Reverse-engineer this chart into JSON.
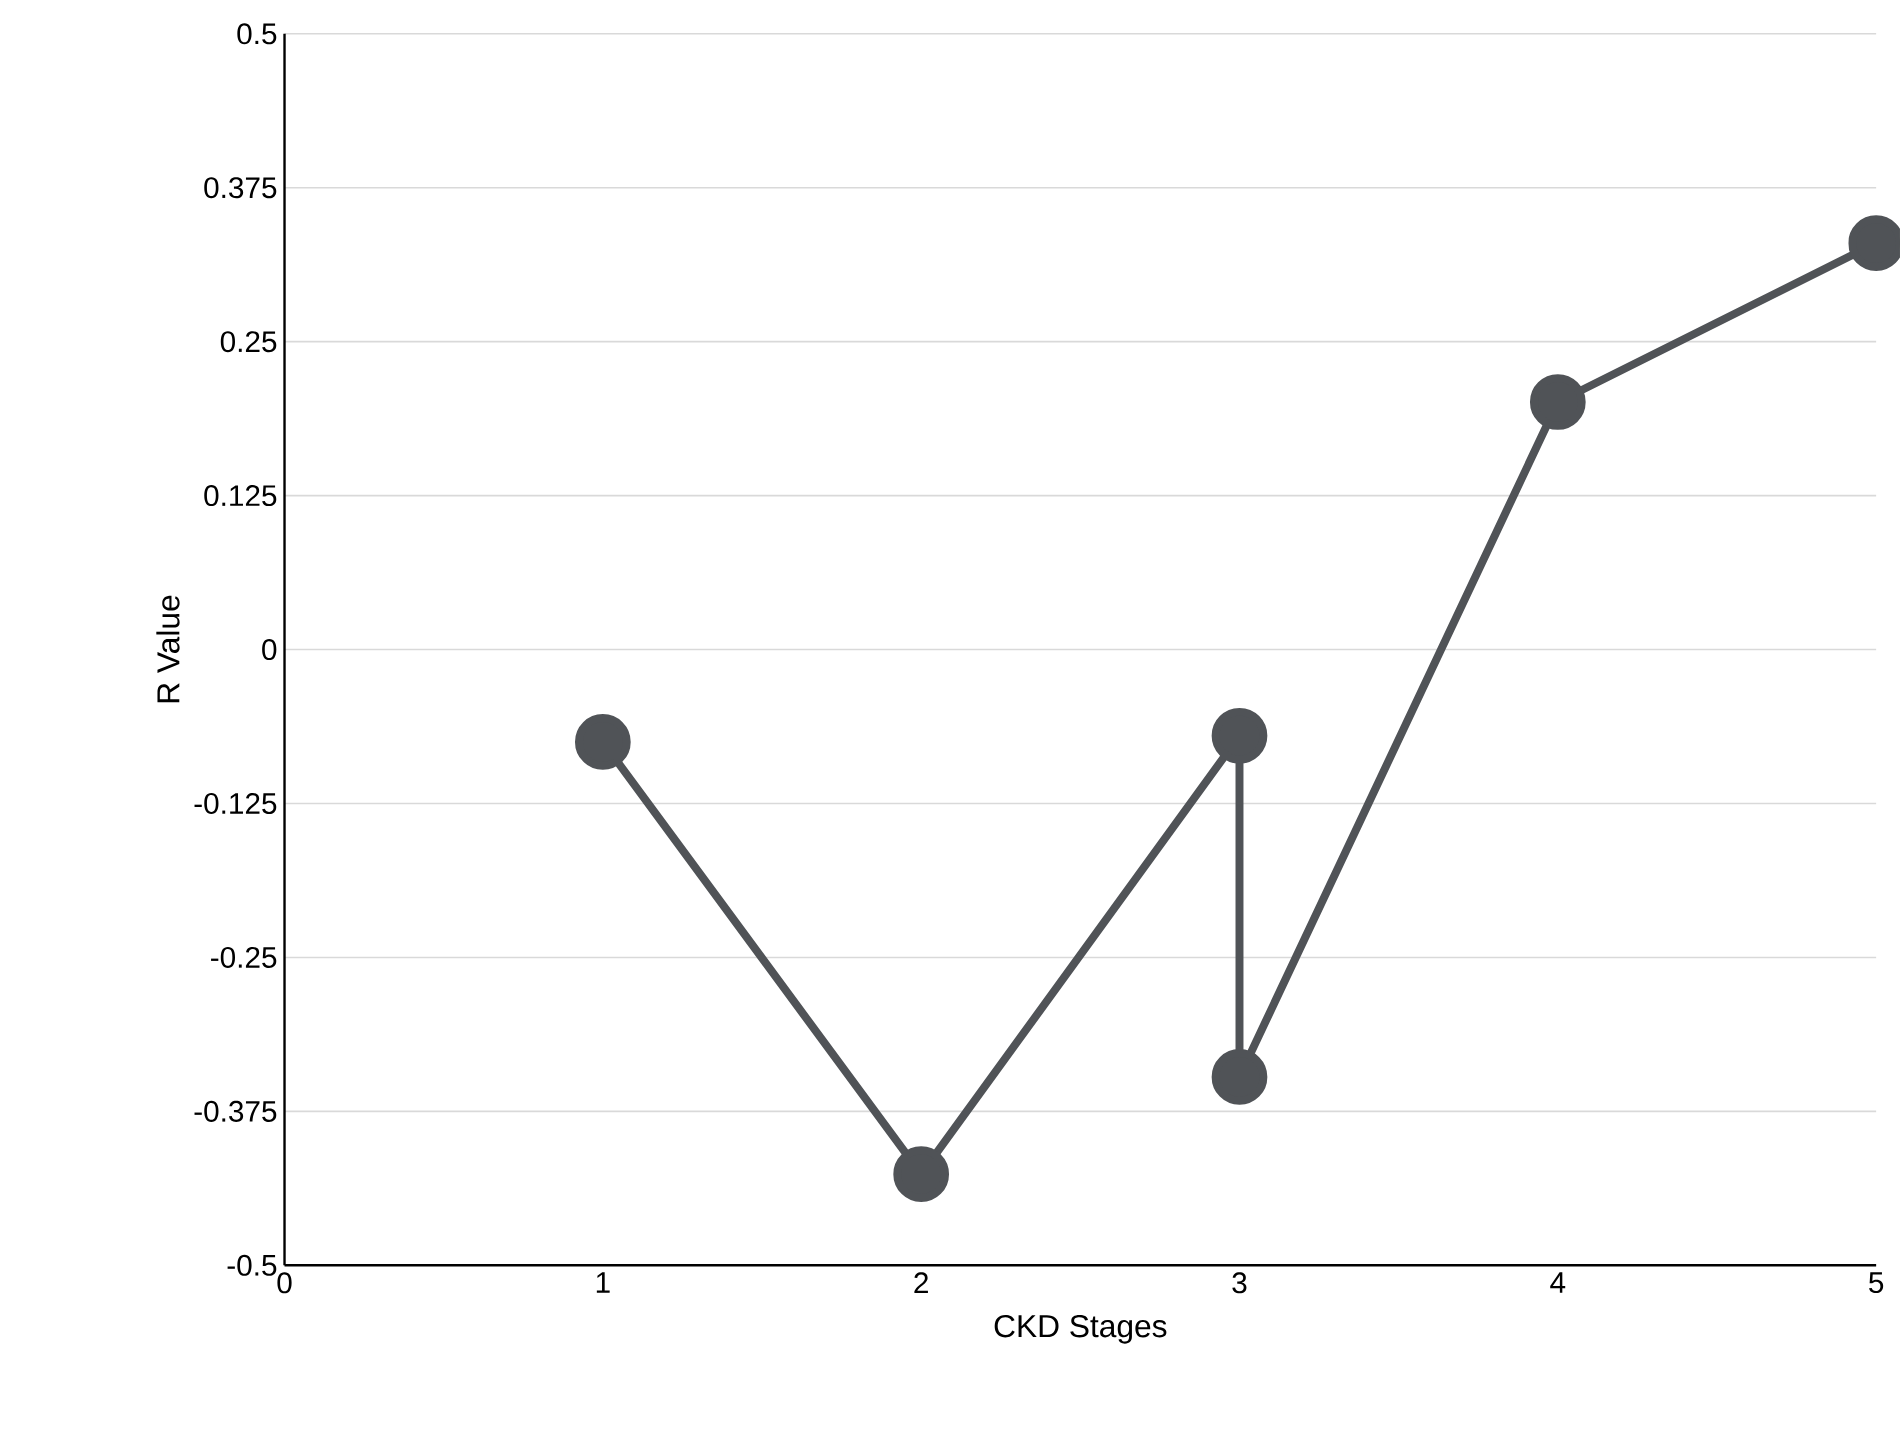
{
  "chart_data": {
    "type": "line",
    "xlabel": "CKD Stages",
    "ylabel": "R Value",
    "x": [
      1,
      2,
      3,
      3,
      4,
      5
    ],
    "values": [
      -0.075,
      -0.426,
      -0.07,
      -0.347,
      0.201,
      0.33
    ],
    "color": "#505357",
    "marker": "circle",
    "line_style": "solid",
    "grid": "y",
    "xlim": [
      0,
      5
    ],
    "xticks": [
      0,
      1,
      2,
      3,
      4,
      5
    ],
    "ylim": [
      -0.5,
      0.5
    ],
    "yticks": [
      -0.5,
      -0.375,
      -0.25,
      -0.125,
      0,
      0.125,
      0.25,
      0.375,
      0.5
    ]
  }
}
